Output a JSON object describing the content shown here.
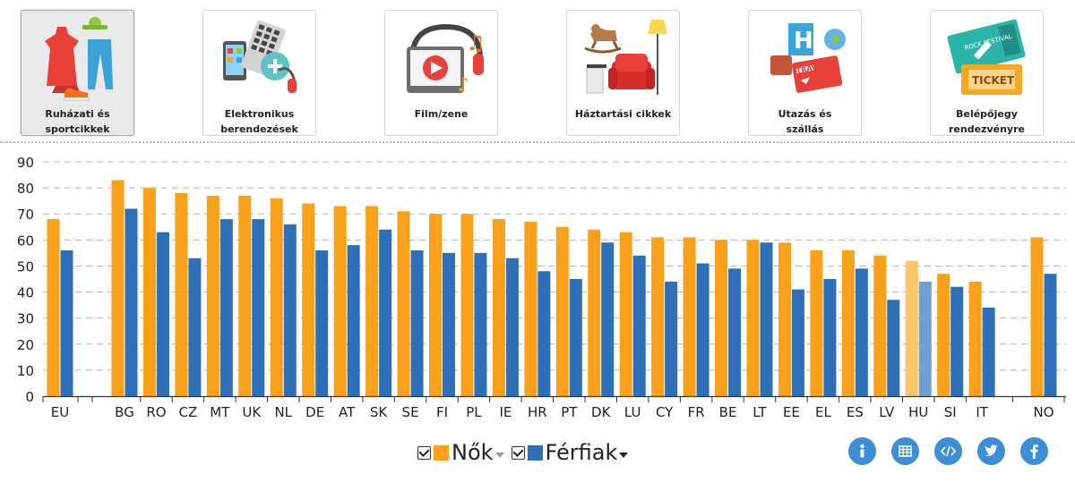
{
  "tabs": [
    {
      "icon": "clothing-sports-icon",
      "line1": "Ruházati és",
      "line2": "sportcikkek",
      "active": true
    },
    {
      "icon": "electronics-icon",
      "line1": "Elektronikus",
      "line2": "berendezések",
      "active": false
    },
    {
      "icon": "film-music-icon",
      "line1": "Film/zene",
      "line2": "",
      "active": false
    },
    {
      "icon": "household-goods-icon",
      "line1": "Háztartási cikkek",
      "line2": "",
      "active": false
    },
    {
      "icon": "travel-accommodation-icon",
      "line1": "Utazás és",
      "line2": "szállás",
      "active": false
    },
    {
      "icon": "event-ticket-icon",
      "line1": "Belépőjegy",
      "line2": "rendezvényre",
      "active": false
    }
  ],
  "legend": [
    {
      "label": "Nők",
      "color": "#f9a11b"
    },
    {
      "label": "Férfiak",
      "color": "#2e6fb7"
    }
  ],
  "tools": [
    "info-icon",
    "table-icon",
    "embed-code-icon",
    "twitter-icon",
    "facebook-icon"
  ],
  "chart_data": {
    "type": "bar",
    "categories": [
      "EU",
      "BG",
      "RO",
      "CZ",
      "MT",
      "UK",
      "NL",
      "DE",
      "AT",
      "SK",
      "SE",
      "FI",
      "PL",
      "IE",
      "HR",
      "PT",
      "DK",
      "LU",
      "CY",
      "FR",
      "BE",
      "LT",
      "EE",
      "EL",
      "ES",
      "LV",
      "HU",
      "SI",
      "IT",
      "NO"
    ],
    "series": [
      {
        "name": "Nők",
        "color": "#f9a11b",
        "highlight_color": "#fcc566",
        "values": [
          68,
          83,
          80,
          78,
          77,
          77,
          76,
          74,
          73,
          73,
          71,
          70,
          70,
          68,
          67,
          65,
          64,
          63,
          61,
          61,
          60,
          60,
          59,
          56,
          56,
          54,
          52,
          47,
          44,
          61
        ]
      },
      {
        "name": "Férfiak",
        "color": "#2e6fb7",
        "highlight_color": "#6f9fd3",
        "values": [
          56,
          72,
          63,
          53,
          68,
          68,
          66,
          56,
          58,
          64,
          56,
          55,
          55,
          53,
          48,
          45,
          59,
          54,
          44,
          51,
          49,
          59,
          41,
          45,
          49,
          37,
          44,
          42,
          34,
          47
        ]
      }
    ],
    "highlighted_category": "HU",
    "ylim": [
      0,
      90
    ],
    "yticks": [
      0,
      10,
      20,
      30,
      40,
      50,
      60,
      70,
      80,
      90
    ],
    "grid": true,
    "legend_position": "bottom-center"
  }
}
